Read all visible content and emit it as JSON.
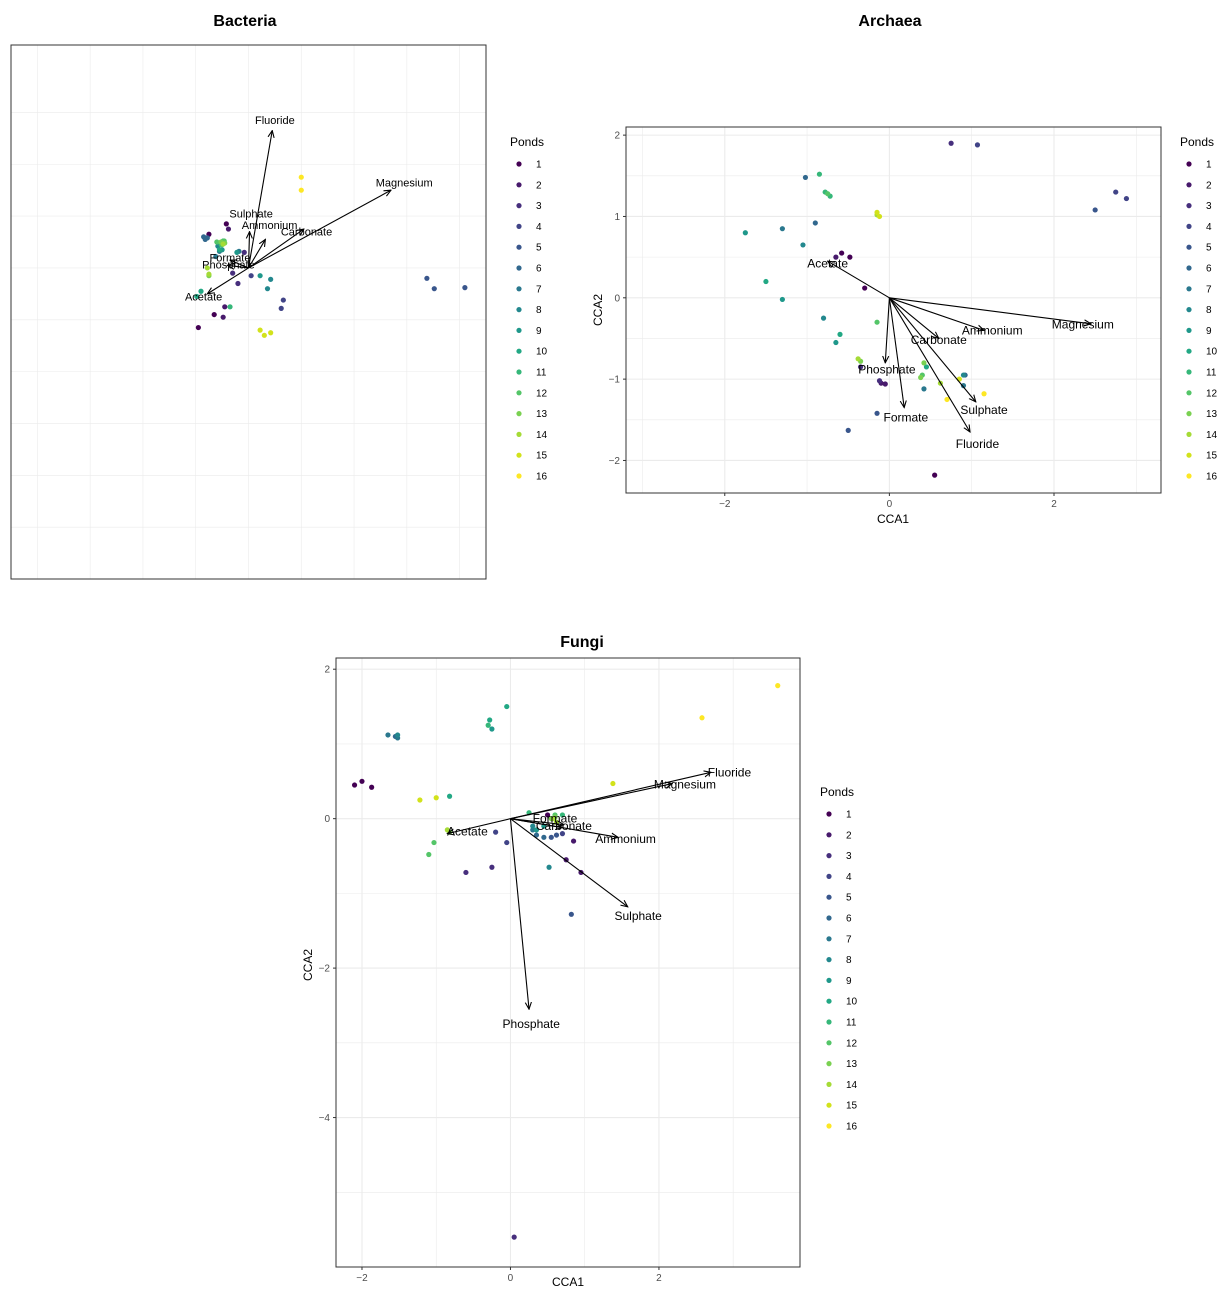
{
  "colors": {
    "ponds": [
      "#440154",
      "#481A6C",
      "#472F7D",
      "#414487",
      "#39568C",
      "#31688E",
      "#2A788E",
      "#23888E",
      "#1F988B",
      "#22A884",
      "#35B779",
      "#54C568",
      "#7AD151",
      "#A5DB36",
      "#D2E21B",
      "#FDE725"
    ],
    "grid": "#ebebeb",
    "border": "#333333"
  },
  "legend": {
    "title": "Ponds",
    "items": [
      "1",
      "2",
      "3",
      "4",
      "5",
      "6",
      "7",
      "8",
      "9",
      "10",
      "11",
      "12",
      "13",
      "14",
      "15",
      "16"
    ]
  },
  "chart_data": [
    {
      "type": "scatter",
      "title": "Bacteria",
      "xlabel": "",
      "ylabel": "",
      "xlim": [
        -4.5,
        4.5
      ],
      "ylim": [
        -6,
        4.3
      ],
      "xticks": [],
      "yticks": [],
      "grid_x": [
        -4,
        -3,
        -2,
        -1,
        0,
        1,
        2,
        3,
        4
      ],
      "grid_y": [
        -5,
        -4,
        -3,
        -2,
        -1,
        0,
        1,
        2,
        3
      ],
      "points": [
        {
          "x": -0.95,
          "y": -1.15,
          "pond": 1
        },
        {
          "x": -0.75,
          "y": 0.65,
          "pond": 1
        },
        {
          "x": -0.65,
          "y": -0.9,
          "pond": 1
        },
        {
          "x": -0.42,
          "y": 0.85,
          "pond": 1
        },
        {
          "x": -0.48,
          "y": -0.95,
          "pond": 2
        },
        {
          "x": -0.38,
          "y": 0.75,
          "pond": 2
        },
        {
          "x": -0.45,
          "y": -0.75,
          "pond": 2
        },
        {
          "x": -0.08,
          "y": 0.3,
          "pond": 3
        },
        {
          "x": -0.2,
          "y": -0.3,
          "pond": 3
        },
        {
          "x": -0.3,
          "y": -0.1,
          "pond": 3
        },
        {
          "x": 0.62,
          "y": -0.78,
          "pond": 4
        },
        {
          "x": 0.66,
          "y": -0.62,
          "pond": 4
        },
        {
          "x": 0.05,
          "y": -0.15,
          "pond": 4
        },
        {
          "x": 3.38,
          "y": -0.2,
          "pond": 5
        },
        {
          "x": 3.52,
          "y": -0.4,
          "pond": 5
        },
        {
          "x": 4.1,
          "y": -0.38,
          "pond": 5
        },
        {
          "x": -0.85,
          "y": 0.6,
          "pond": 6
        },
        {
          "x": -0.82,
          "y": 0.55,
          "pond": 6
        },
        {
          "x": -0.78,
          "y": 0.58,
          "pond": 6
        },
        {
          "x": -0.62,
          "y": 0.22,
          "pond": 7
        },
        {
          "x": -0.55,
          "y": 0.32,
          "pond": 7
        },
        {
          "x": -0.18,
          "y": 0.32,
          "pond": 7
        },
        {
          "x": -0.58,
          "y": 0.42,
          "pond": 8
        },
        {
          "x": 0.36,
          "y": -0.4,
          "pond": 8
        },
        {
          "x": 0.42,
          "y": -0.22,
          "pond": 8
        },
        {
          "x": -0.5,
          "y": 0.35,
          "pond": 9
        },
        {
          "x": 0.22,
          "y": -0.15,
          "pond": 9
        },
        {
          "x": -0.22,
          "y": 0.3,
          "pond": 9
        },
        {
          "x": -0.9,
          "y": -0.45,
          "pond": 10
        },
        {
          "x": -0.98,
          "y": -0.55,
          "pond": 10
        },
        {
          "x": -0.55,
          "y": 0.35,
          "pond": 10
        },
        {
          "x": -0.35,
          "y": -0.75,
          "pond": 11
        },
        {
          "x": -0.52,
          "y": 0.45,
          "pond": 11
        },
        {
          "x": -0.48,
          "y": 0.52,
          "pond": 11
        },
        {
          "x": -0.6,
          "y": 0.5,
          "pond": 12
        },
        {
          "x": -0.46,
          "y": 0.52,
          "pond": 12
        },
        {
          "x": -0.5,
          "y": 0.45,
          "pond": 12
        },
        {
          "x": -0.75,
          "y": -0.15,
          "pond": 13
        },
        {
          "x": -0.52,
          "y": 0.5,
          "pond": 13
        },
        {
          "x": -0.45,
          "y": 0.48,
          "pond": 13
        },
        {
          "x": -0.78,
          "y": -0.0,
          "pond": 14
        },
        {
          "x": -0.75,
          "y": -0.12,
          "pond": 14
        },
        {
          "x": -0.48,
          "y": 0.46,
          "pond": 14
        },
        {
          "x": 0.22,
          "y": -1.2,
          "pond": 15
        },
        {
          "x": 0.3,
          "y": -1.3,
          "pond": 15
        },
        {
          "x": 0.42,
          "y": -1.25,
          "pond": 15
        },
        {
          "x": 1.0,
          "y": 1.75,
          "pond": 16
        },
        {
          "x": 1.0,
          "y": 1.5,
          "pond": 16
        }
      ],
      "vectors": [
        {
          "label": "Fluoride",
          "x": 0.45,
          "y": 2.65,
          "lx": 0.5,
          "ly": 2.85
        },
        {
          "label": "Magnesium",
          "x": 2.7,
          "y": 1.5,
          "lx": 2.95,
          "ly": 1.65
        },
        {
          "label": "Sulphate",
          "x": 0.02,
          "y": 0.7,
          "lx": 0.05,
          "ly": 1.05
        },
        {
          "label": "Ammonium",
          "x": 0.32,
          "y": 0.55,
          "lx": 0.4,
          "ly": 0.83
        },
        {
          "label": "Carbonate",
          "x": 1.05,
          "y": 0.75,
          "lx": 1.1,
          "ly": 0.7
        },
        {
          "label": "Formate",
          "x": -0.35,
          "y": 0.15,
          "lx": -0.35,
          "ly": 0.2
        },
        {
          "label": "Phosphate",
          "x": -0.4,
          "y": 0.05,
          "lx": -0.38,
          "ly": 0.07
        },
        {
          "label": "Acetate",
          "x": -0.78,
          "y": -0.5,
          "lx": -0.85,
          "ly": -0.55
        }
      ]
    },
    {
      "type": "scatter",
      "title": "Archaea",
      "xlabel": "CCA1",
      "ylabel": "CCA2",
      "xlim": [
        -3.2,
        3.3
      ],
      "ylim": [
        -2.4,
        2.1
      ],
      "xticks": [
        -2,
        0,
        2
      ],
      "yticks": [
        -2,
        -1,
        0,
        1,
        2
      ],
      "points": [
        {
          "x": -0.58,
          "y": 0.55,
          "pond": 1
        },
        {
          "x": -0.48,
          "y": 0.5,
          "pond": 1
        },
        {
          "x": -0.3,
          "y": 0.12,
          "pond": 1
        },
        {
          "x": 0.55,
          "y": -2.18,
          "pond": 1
        },
        {
          "x": -0.1,
          "y": -1.05,
          "pond": 2
        },
        {
          "x": -0.05,
          "y": -1.06,
          "pond": 2
        },
        {
          "x": -0.65,
          "y": 0.5,
          "pond": 2
        },
        {
          "x": -0.12,
          "y": -1.02,
          "pond": 3
        },
        {
          "x": 0.75,
          "y": 1.9,
          "pond": 3
        },
        {
          "x": -0.35,
          "y": -0.85,
          "pond": 3
        },
        {
          "x": 1.07,
          "y": 1.88,
          "pond": 4
        },
        {
          "x": 2.75,
          "y": 1.3,
          "pond": 4
        },
        {
          "x": 2.88,
          "y": 1.22,
          "pond": 4
        },
        {
          "x": 2.5,
          "y": 1.08,
          "pond": 5
        },
        {
          "x": -0.5,
          "y": -1.63,
          "pond": 5
        },
        {
          "x": -0.15,
          "y": -1.42,
          "pond": 5
        },
        {
          "x": -1.02,
          "y": 1.48,
          "pond": 6
        },
        {
          "x": -0.9,
          "y": 0.92,
          "pond": 6
        },
        {
          "x": 0.92,
          "y": -0.95,
          "pond": 6
        },
        {
          "x": -1.3,
          "y": 0.85,
          "pond": 7
        },
        {
          "x": 0.42,
          "y": -1.12,
          "pond": 7
        },
        {
          "x": 0.9,
          "y": -1.08,
          "pond": 7
        },
        {
          "x": -1.05,
          "y": 0.65,
          "pond": 8
        },
        {
          "x": -0.8,
          "y": -0.25,
          "pond": 8
        },
        {
          "x": 0.9,
          "y": -0.95,
          "pond": 8
        },
        {
          "x": -1.75,
          "y": 0.8,
          "pond": 9
        },
        {
          "x": -1.3,
          "y": -0.02,
          "pond": 9
        },
        {
          "x": -0.65,
          "y": -0.55,
          "pond": 9
        },
        {
          "x": -1.5,
          "y": 0.2,
          "pond": 10
        },
        {
          "x": -0.6,
          "y": -0.45,
          "pond": 10
        },
        {
          "x": 0.45,
          "y": -0.85,
          "pond": 10
        },
        {
          "x": -0.85,
          "y": 1.52,
          "pond": 11
        },
        {
          "x": -0.78,
          "y": 1.3,
          "pond": 11
        },
        {
          "x": -0.72,
          "y": 1.25,
          "pond": 11
        },
        {
          "x": -0.75,
          "y": 1.28,
          "pond": 12
        },
        {
          "x": -0.15,
          "y": -0.3,
          "pond": 12
        },
        {
          "x": 0.4,
          "y": -0.95,
          "pond": 12
        },
        {
          "x": 0.42,
          "y": -0.8,
          "pond": 13
        },
        {
          "x": 0.38,
          "y": -0.98,
          "pond": 13
        },
        {
          "x": -0.35,
          "y": -0.78,
          "pond": 13
        },
        {
          "x": -0.38,
          "y": -0.75,
          "pond": 14
        },
        {
          "x": -0.15,
          "y": 1.02,
          "pond": 14
        },
        {
          "x": 0.62,
          "y": -1.05,
          "pond": 14
        },
        {
          "x": -0.15,
          "y": 1.05,
          "pond": 15
        },
        {
          "x": -0.12,
          "y": 1.0,
          "pond": 15
        },
        {
          "x": 0.85,
          "y": -1.0,
          "pond": 15
        },
        {
          "x": 0.7,
          "y": -1.25,
          "pond": 16
        },
        {
          "x": 1.15,
          "y": -1.18,
          "pond": 16
        }
      ],
      "vectors": [
        {
          "label": "Acetate",
          "x": -0.75,
          "y": 0.45,
          "lx": -0.75,
          "ly": 0.42
        },
        {
          "label": "Magnesium",
          "x": 2.45,
          "y": -0.32,
          "lx": 2.35,
          "ly": -0.33
        },
        {
          "label": "Ammonium",
          "x": 1.15,
          "y": -0.4,
          "lx": 1.25,
          "ly": -0.4
        },
        {
          "label": "Carbonate",
          "x": 0.6,
          "y": -0.5,
          "lx": 0.6,
          "ly": -0.52
        },
        {
          "label": "Phosphate",
          "x": -0.05,
          "y": -0.8,
          "lx": -0.03,
          "ly": -0.88
        },
        {
          "label": "Formate",
          "x": 0.18,
          "y": -1.35,
          "lx": 0.2,
          "ly": -1.47
        },
        {
          "label": "Sulphate",
          "x": 1.05,
          "y": -1.28,
          "lx": 1.15,
          "ly": -1.38
        },
        {
          "label": "Fluoride",
          "x": 0.98,
          "y": -1.65,
          "lx": 1.07,
          "ly": -1.8
        }
      ]
    },
    {
      "type": "scatter",
      "title": "Fungi",
      "xlabel": "CCA1",
      "ylabel": "CCA2",
      "xlim": [
        -2.35,
        3.9
      ],
      "ylim": [
        -6.0,
        2.15
      ],
      "xticks": [
        -2,
        0,
        2
      ],
      "yticks": [
        -4,
        -2,
        0,
        2
      ],
      "points": [
        {
          "x": -2.1,
          "y": 0.45,
          "pond": 1
        },
        {
          "x": -2.0,
          "y": 0.5,
          "pond": 1
        },
        {
          "x": -1.87,
          "y": 0.42,
          "pond": 1
        },
        {
          "x": 0.5,
          "y": 0.05,
          "pond": 1
        },
        {
          "x": 0.85,
          "y": -0.3,
          "pond": 2
        },
        {
          "x": 0.75,
          "y": -0.55,
          "pond": 2
        },
        {
          "x": 0.95,
          "y": -0.72,
          "pond": 2
        },
        {
          "x": 0.05,
          "y": -5.6,
          "pond": 3
        },
        {
          "x": -0.6,
          "y": -0.72,
          "pond": 3
        },
        {
          "x": -0.25,
          "y": -0.65,
          "pond": 3
        },
        {
          "x": -0.2,
          "y": -0.18,
          "pond": 4
        },
        {
          "x": -0.05,
          "y": -0.32,
          "pond": 4
        },
        {
          "x": 0.7,
          "y": -0.2,
          "pond": 4
        },
        {
          "x": 0.82,
          "y": -1.28,
          "pond": 5
        },
        {
          "x": 0.55,
          "y": -0.25,
          "pond": 5
        },
        {
          "x": 0.62,
          "y": -0.22,
          "pond": 5
        },
        {
          "x": -1.55,
          "y": 1.1,
          "pond": 6
        },
        {
          "x": 0.35,
          "y": -0.22,
          "pond": 6
        },
        {
          "x": 0.45,
          "y": -0.25,
          "pond": 6
        },
        {
          "x": -1.65,
          "y": 1.12,
          "pond": 7
        },
        {
          "x": -1.52,
          "y": 1.08,
          "pond": 7
        },
        {
          "x": 0.3,
          "y": -0.15,
          "pond": 7
        },
        {
          "x": -1.52,
          "y": 1.12,
          "pond": 8
        },
        {
          "x": 0.52,
          "y": -0.65,
          "pond": 8
        },
        {
          "x": 0.3,
          "y": -0.1,
          "pond": 8
        },
        {
          "x": -0.25,
          "y": 1.2,
          "pond": 9
        },
        {
          "x": 0.45,
          "y": -0.1,
          "pond": 9
        },
        {
          "x": 0.35,
          "y": -0.15,
          "pond": 9
        },
        {
          "x": -0.05,
          "y": 1.5,
          "pond": 10
        },
        {
          "x": -0.28,
          "y": 1.32,
          "pond": 10
        },
        {
          "x": -0.82,
          "y": 0.3,
          "pond": 10
        },
        {
          "x": 0.25,
          "y": 0.08,
          "pond": 11
        },
        {
          "x": 0.7,
          "y": 0.05,
          "pond": 11
        },
        {
          "x": -0.3,
          "y": 1.25,
          "pond": 11
        },
        {
          "x": -1.1,
          "y": -0.48,
          "pond": 12
        },
        {
          "x": -1.03,
          "y": -0.32,
          "pond": 12
        },
        {
          "x": 0.6,
          "y": 0.05,
          "pond": 12
        },
        {
          "x": -0.82,
          "y": -0.18,
          "pond": 13
        },
        {
          "x": 0.55,
          "y": 0.0,
          "pond": 13
        },
        {
          "x": 0.6,
          "y": 0.02,
          "pond": 13
        },
        {
          "x": -0.85,
          "y": -0.15,
          "pond": 14
        },
        {
          "x": 0.58,
          "y": 0.0,
          "pond": 14
        },
        {
          "x": 0.62,
          "y": -0.05,
          "pond": 14
        },
        {
          "x": -1.22,
          "y": 0.25,
          "pond": 15
        },
        {
          "x": -1.0,
          "y": 0.28,
          "pond": 15
        },
        {
          "x": 1.38,
          "y": 0.47,
          "pond": 15
        },
        {
          "x": 2.58,
          "y": 1.35,
          "pond": 16
        },
        {
          "x": 3.6,
          "y": 1.78,
          "pond": 16
        }
      ],
      "vectors": [
        {
          "label": "Fluoride",
          "x": 2.7,
          "y": 0.62,
          "lx": 2.95,
          "ly": 0.62
        },
        {
          "label": "Magnesium",
          "x": 2.18,
          "y": 0.47,
          "lx": 2.35,
          "ly": 0.46
        },
        {
          "label": "Acetate",
          "x": -0.85,
          "y": -0.2,
          "lx": -0.58,
          "ly": -0.17
        },
        {
          "label": "Formate",
          "x": 0.72,
          "y": -0.08,
          "lx": 0.6,
          "ly": -0.0
        },
        {
          "label": "Carbonate",
          "x": 0.7,
          "y": -0.12,
          "lx": 0.72,
          "ly": -0.1
        },
        {
          "label": "Ammonium",
          "x": 1.45,
          "y": -0.25,
          "lx": 1.55,
          "ly": -0.27
        },
        {
          "label": "Sulphate",
          "x": 1.58,
          "y": -1.18,
          "lx": 1.72,
          "ly": -1.3
        },
        {
          "label": "Phosphate",
          "x": 0.25,
          "y": -2.55,
          "lx": 0.28,
          "ly": -2.75
        }
      ]
    }
  ]
}
